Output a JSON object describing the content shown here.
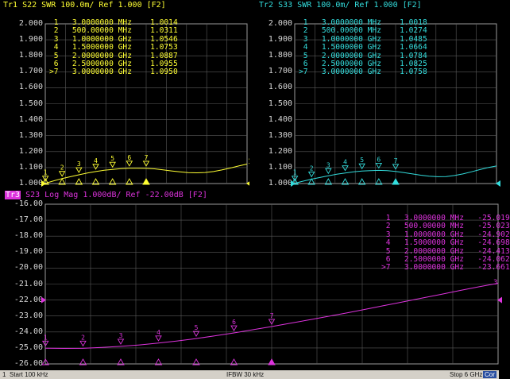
{
  "traces": [
    {
      "id": "tr1",
      "title": "Tr1 S22 SWR 100.0m/ Ref 1.000 [F2]",
      "color": "#ffff33",
      "y_labels": [
        "2.000",
        "1.900",
        "1.800",
        "1.700",
        "1.600",
        "1.500",
        "1.400",
        "1.300",
        "1.200",
        "1.100",
        "1.000"
      ],
      "markers": [
        {
          "num": "1",
          "freq": "3.0000000",
          "unit": "MHz",
          "value": "1.0014"
        },
        {
          "num": "2",
          "freq": "500.00000",
          "unit": "MHz",
          "value": "1.0311"
        },
        {
          "num": "3",
          "freq": "1.0000000",
          "unit": "GHz",
          "value": "1.0546"
        },
        {
          "num": "4",
          "freq": "1.5000000",
          "unit": "GHz",
          "value": "1.0753"
        },
        {
          "num": "5",
          "freq": "2.0000000",
          "unit": "GHz",
          "value": "1.0887"
        },
        {
          "num": "6",
          "freq": "2.5000000",
          "unit": "GHz",
          "value": "1.0955"
        },
        {
          "num": ">7",
          "freq": "3.0000000",
          "unit": "GHz",
          "value": "1.0950"
        }
      ],
      "end_label": "1"
    },
    {
      "id": "tr2",
      "title": "Tr2 S33 SWR 100.0m/ Ref 1.000 [F2]",
      "color": "#33dddd",
      "y_labels": [
        "2.000",
        "1.900",
        "1.800",
        "1.700",
        "1.600",
        "1.500",
        "1.400",
        "1.300",
        "1.200",
        "1.100",
        "1.000"
      ],
      "markers": [
        {
          "num": "1",
          "freq": "3.0000000",
          "unit": "MHz",
          "value": "1.0018"
        },
        {
          "num": "2",
          "freq": "500.00000",
          "unit": "MHz",
          "value": "1.0274"
        },
        {
          "num": "3",
          "freq": "1.0000000",
          "unit": "GHz",
          "value": "1.0485"
        },
        {
          "num": "4",
          "freq": "1.5000000",
          "unit": "GHz",
          "value": "1.0664"
        },
        {
          "num": "5",
          "freq": "2.0000000",
          "unit": "GHz",
          "value": "1.0784"
        },
        {
          "num": "6",
          "freq": "2.5000000",
          "unit": "GHz",
          "value": "1.0825"
        },
        {
          "num": ">7",
          "freq": "3.0000000",
          "unit": "GHz",
          "value": "1.0758"
        }
      ],
      "end_label": "2"
    },
    {
      "id": "tr3",
      "title_badge": "Tr3",
      "title": " S23 Log Mag 1.000dB/ Ref -22.00dB [F2]",
      "color": "#dd33dd",
      "y_labels": [
        "-16.00",
        "-17.00",
        "-18.00",
        "-19.00",
        "-20.00",
        "-21.00",
        "-22.00",
        "-23.00",
        "-24.00",
        "-25.00",
        "-26.00"
      ],
      "markers": [
        {
          "num": "1",
          "freq": "3.0000000",
          "unit": "MHz",
          "value": "-25.019"
        },
        {
          "num": "2",
          "freq": "500.00000",
          "unit": "MHz",
          "value": "-25.023"
        },
        {
          "num": "3",
          "freq": "1.0000000",
          "unit": "GHz",
          "value": "-24.902"
        },
        {
          "num": "4",
          "freq": "1.5000000",
          "unit": "GHz",
          "value": "-24.698"
        },
        {
          "num": "5",
          "freq": "2.0000000",
          "unit": "GHz",
          "value": "-24.413"
        },
        {
          "num": "6",
          "freq": "2.5000000",
          "unit": "GHz",
          "value": "-24.062"
        },
        {
          "num": ">7",
          "freq": "3.0000000",
          "unit": "GHz",
          "value": "-23.661"
        }
      ],
      "end_label": "3"
    }
  ],
  "status": {
    "channel": "1",
    "start": "Start 100 kHz",
    "ifbw": "IFBW 30 kHz",
    "stop": "Stop 6 GHz",
    "cor": "Cor"
  },
  "colors": {
    "grid": "#5a5a5a",
    "frame": "#9a9a9a",
    "badge_bg": "#dd33dd"
  },
  "chart_data": [
    {
      "type": "line",
      "title": "Tr1 S22 SWR 100.0m/ Ref 1.000 [F2]",
      "xlim": [
        0.0001,
        6
      ],
      "ylim": [
        1.0,
        2.0
      ],
      "x_unit": "GHz",
      "x": [
        0.0001,
        0.25,
        0.5,
        0.75,
        1.0,
        1.25,
        1.5,
        1.75,
        2.0,
        2.25,
        2.5,
        2.75,
        3.0,
        3.25,
        3.5,
        3.75,
        4.0,
        4.25,
        4.5,
        4.75,
        5.0,
        5.25,
        5.5,
        5.75,
        6.0
      ],
      "series": [
        {
          "values": [
            1.0014,
            1.017,
            1.0311,
            1.043,
            1.0546,
            1.066,
            1.0753,
            1.083,
            1.0887,
            1.093,
            1.0955,
            1.096,
            1.095,
            1.092,
            1.086,
            1.079,
            1.073,
            1.068,
            1.067,
            1.069,
            1.075,
            1.085,
            1.097,
            1.11,
            1.122
          ]
        }
      ],
      "markers_x": [
        0.003,
        0.5,
        1.0,
        1.5,
        2.0,
        2.5,
        3.0
      ]
    },
    {
      "type": "line",
      "title": "Tr2 S33 SWR 100.0m/ Ref 1.000 [F2]",
      "xlim": [
        0.0001,
        6
      ],
      "ylim": [
        1.0,
        2.0
      ],
      "x_unit": "GHz",
      "x": [
        0.0001,
        0.25,
        0.5,
        0.75,
        1.0,
        1.25,
        1.5,
        1.75,
        2.0,
        2.25,
        2.5,
        2.75,
        3.0,
        3.25,
        3.5,
        3.75,
        4.0,
        4.25,
        4.5,
        4.75,
        5.0,
        5.25,
        5.5,
        5.75,
        6.0
      ],
      "series": [
        {
          "values": [
            1.0018,
            1.015,
            1.0274,
            1.038,
            1.0485,
            1.058,
            1.0664,
            1.073,
            1.0784,
            1.081,
            1.0825,
            1.081,
            1.0758,
            1.068,
            1.06,
            1.052,
            1.046,
            1.043,
            1.044,
            1.05,
            1.06,
            1.073,
            1.087,
            1.1,
            1.11
          ]
        }
      ],
      "markers_x": [
        0.003,
        0.5,
        1.0,
        1.5,
        2.0,
        2.5,
        3.0
      ]
    },
    {
      "type": "line",
      "title": "Tr3 S23 Log Mag 1.000dB/ Ref -22.00dB [F2]",
      "xlim": [
        0.0001,
        6
      ],
      "ylim": [
        -26.0,
        -16.0
      ],
      "x_unit": "GHz",
      "x": [
        0.0001,
        0.25,
        0.5,
        0.75,
        1.0,
        1.25,
        1.5,
        1.75,
        2.0,
        2.25,
        2.5,
        2.75,
        3.0,
        3.25,
        3.5,
        3.75,
        4.0,
        4.25,
        4.5,
        4.75,
        5.0,
        5.25,
        5.5,
        5.75,
        6.0
      ],
      "series": [
        {
          "values": [
            -25.019,
            -25.03,
            -25.023,
            -24.97,
            -24.902,
            -24.81,
            -24.698,
            -24.56,
            -24.413,
            -24.24,
            -24.062,
            -23.86,
            -23.661,
            -23.45,
            -23.24,
            -23.02,
            -22.8,
            -22.57,
            -22.34,
            -22.11,
            -21.87,
            -21.64,
            -21.4,
            -21.17,
            -20.95
          ]
        }
      ],
      "markers_x": [
        0.003,
        0.5,
        1.0,
        1.5,
        2.0,
        2.5,
        3.0
      ]
    }
  ]
}
